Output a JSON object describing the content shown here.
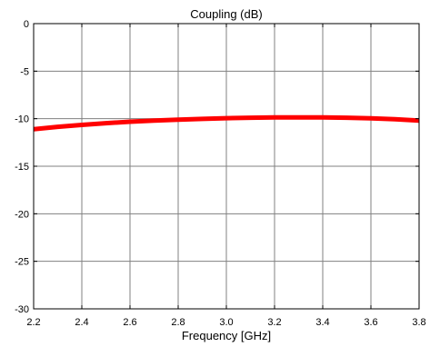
{
  "chart_data": {
    "type": "line",
    "title": "Coupling (dB)",
    "xlabel": "Frequency [GHz]",
    "ylabel": "",
    "xlim": [
      2.2,
      3.8
    ],
    "ylim": [
      -30,
      0
    ],
    "xticks": [
      2.2,
      2.4,
      2.6,
      2.8,
      3.0,
      3.2,
      3.4,
      3.6,
      3.8
    ],
    "xtick_labels": [
      "2.2",
      "2.4",
      "2.6",
      "2.8",
      "3.0",
      "3.2",
      "3.4",
      "3.6",
      "3.8"
    ],
    "yticks": [
      0,
      -5,
      -10,
      -15,
      -20,
      -25,
      -30
    ],
    "ytick_labels": [
      "0",
      "-5",
      "-10",
      "-15",
      "-20",
      "-25",
      "-30"
    ],
    "grid": true,
    "series": [
      {
        "color": "#ff0000",
        "x": [
          2.2,
          2.3,
          2.4,
          2.5,
          2.6,
          2.7,
          2.8,
          2.9,
          3.0,
          3.1,
          3.2,
          3.3,
          3.4,
          3.5,
          3.6,
          3.7,
          3.8
        ],
        "y": [
          -11.1,
          -10.85,
          -10.65,
          -10.47,
          -10.32,
          -10.2,
          -10.1,
          -10.02,
          -9.95,
          -9.9,
          -9.87,
          -9.86,
          -9.87,
          -9.9,
          -9.96,
          -10.05,
          -10.2
        ]
      }
    ]
  }
}
